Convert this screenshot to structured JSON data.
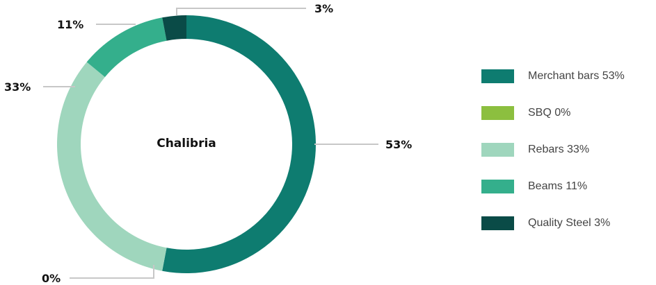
{
  "chart_data": {
    "type": "pie",
    "center_label": "Chalibria",
    "slices": [
      {
        "name": "Merchant bars",
        "value": 53,
        "label": "53%",
        "legend": "Merchant bars 53%",
        "color": "#0e7c70"
      },
      {
        "name": "SBQ",
        "value": 0,
        "label": "0%",
        "legend": "SBQ 0%",
        "color": "#8cbf3f"
      },
      {
        "name": "Rebars",
        "value": 33,
        "label": "33%",
        "legend": "Rebars 33%",
        "color": "#9fd6bd"
      },
      {
        "name": "Beams",
        "value": 11,
        "label": "11%",
        "legend": "Beams 11%",
        "color": "#34af8c"
      },
      {
        "name": "Quality Steel",
        "value": 3,
        "label": "3%",
        "legend": "Quality Steel 3%",
        "color": "#0a4b47"
      }
    ],
    "legend_position": "right"
  }
}
